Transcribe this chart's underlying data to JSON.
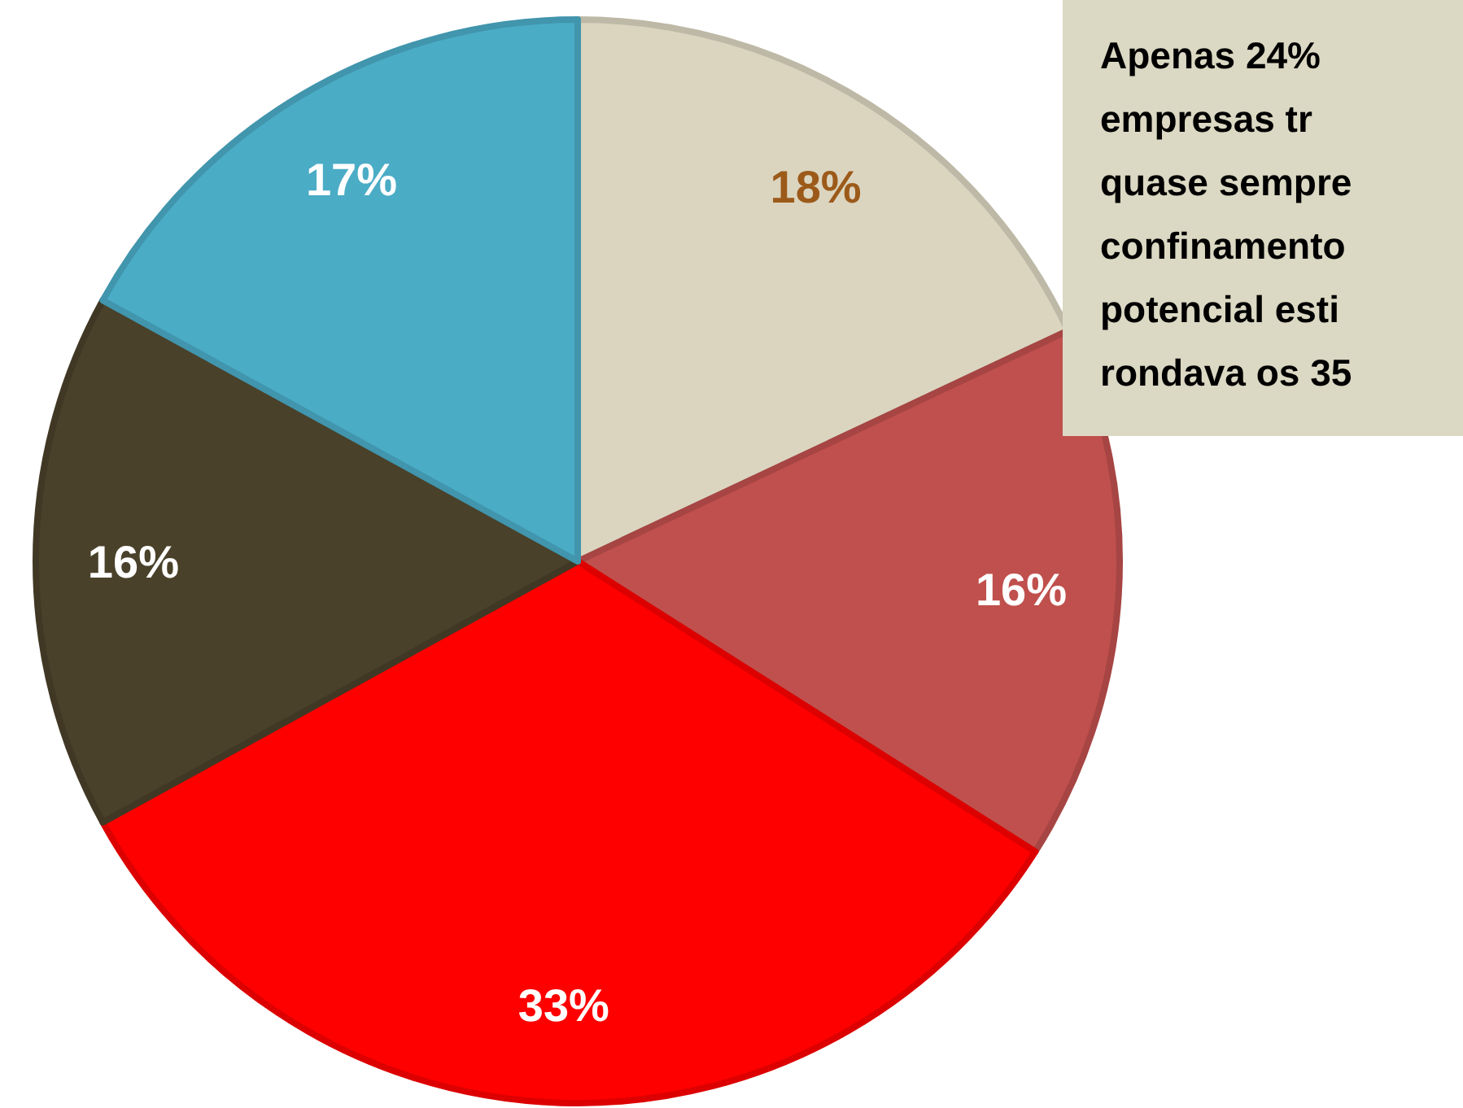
{
  "chart_data": {
    "type": "pie",
    "categories": [
      null,
      null,
      null,
      null,
      null
    ],
    "values": [
      18,
      16,
      33,
      16,
      17
    ],
    "colors": [
      "#dbd5c0",
      "#c0504d",
      "#ff0000",
      "#4a412a",
      "#4bacc6"
    ],
    "value_labels": [
      "18%",
      "16%",
      "33%",
      "16%",
      "17%"
    ],
    "annotations": [
      "Apenas 24%\nempresas tr\nquase sempre\nconfinamento\npotencial esti\nrondava os 35"
    ]
  }
}
